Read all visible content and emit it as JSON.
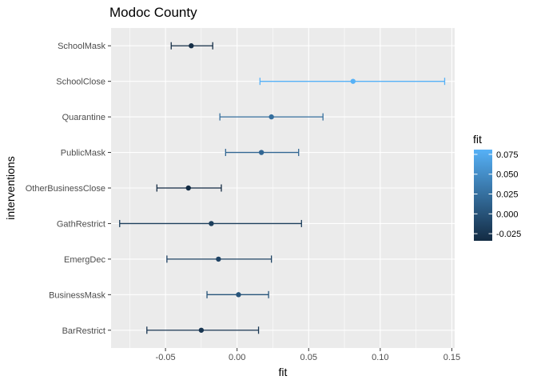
{
  "chart_data": {
    "type": "errorbar",
    "title": "Modoc County",
    "xlabel": "fit",
    "ylabel": "interventions",
    "xlim": [
      -0.088,
      0.152
    ],
    "x_ticks": [
      -0.05,
      0.0,
      0.05,
      0.1,
      0.15
    ],
    "x_tick_labels": [
      "-0.05",
      "0.00",
      "0.05",
      "0.10",
      "0.15"
    ],
    "categories": [
      "SchoolMask",
      "SchoolClose",
      "Quarantine",
      "PublicMask",
      "OtherBusinessClose",
      "GathRestrict",
      "EmergDec",
      "BusinessMask",
      "BarRestrict"
    ],
    "fit": [
      -0.032,
      0.081,
      0.024,
      0.017,
      -0.034,
      -0.018,
      -0.013,
      0.001,
      -0.025
    ],
    "lower": [
      -0.046,
      0.016,
      -0.012,
      -0.008,
      -0.056,
      -0.082,
      -0.049,
      -0.021,
      -0.063
    ],
    "upper": [
      -0.017,
      0.145,
      0.06,
      0.043,
      -0.011,
      0.045,
      0.024,
      0.022,
      0.015
    ],
    "grid": true,
    "legend": {
      "title": "fit",
      "position": "right",
      "breaks": [
        0.075,
        0.05,
        0.025,
        0.0,
        -0.025
      ],
      "break_labels": [
        "0.075",
        "0.050",
        "0.025",
        "0.000",
        "-0.025"
      ],
      "range": [
        -0.034,
        0.081
      ],
      "low_color": "#132B43",
      "high_color": "#56B1F7"
    }
  }
}
